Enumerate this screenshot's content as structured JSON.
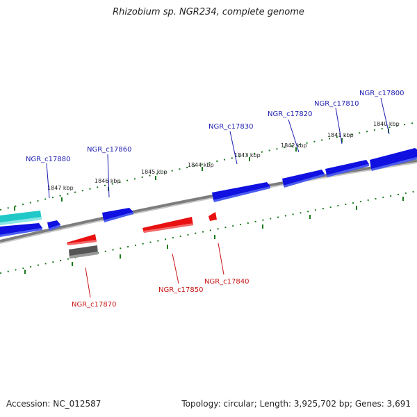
{
  "title": "Rhizobium sp. NGR234, complete genome",
  "footer": {
    "accession": "Accession: NC_012587",
    "stats": "Topology: circular; Length: 3,925,702 bp; Genes: 3,691"
  },
  "colors": {
    "forward_gene": "#1010e0",
    "reverse_gene": "#e81010",
    "other_gene": "#555555",
    "rna_gene": "#20c8c8",
    "backbone": "#808080",
    "tick": "#1a7a1a",
    "forward_label": "#1c1cb0",
    "reverse_label": "#c81414"
  },
  "scale_ticks": [
    {
      "label": "1840 kbp"
    },
    {
      "label": "1841 kbp"
    },
    {
      "label": "1842 kbp"
    },
    {
      "label": "1843 kbp"
    },
    {
      "label": "1844 kbp"
    },
    {
      "label": "1845 kbp"
    },
    {
      "label": "1846 kbp"
    },
    {
      "label": "1847 kbp"
    }
  ],
  "forward_labels": [
    {
      "text": "NGR_c17800"
    },
    {
      "text": "NGR_c17810"
    },
    {
      "text": "NGR_c17820"
    },
    {
      "text": "NGR_c17830"
    },
    {
      "text": "NGR_c17860"
    },
    {
      "text": "NGR_c17880"
    }
  ],
  "reverse_labels": [
    {
      "text": "NGR_c17840"
    },
    {
      "text": "NGR_c17850"
    },
    {
      "text": "NGR_c17870"
    }
  ]
}
